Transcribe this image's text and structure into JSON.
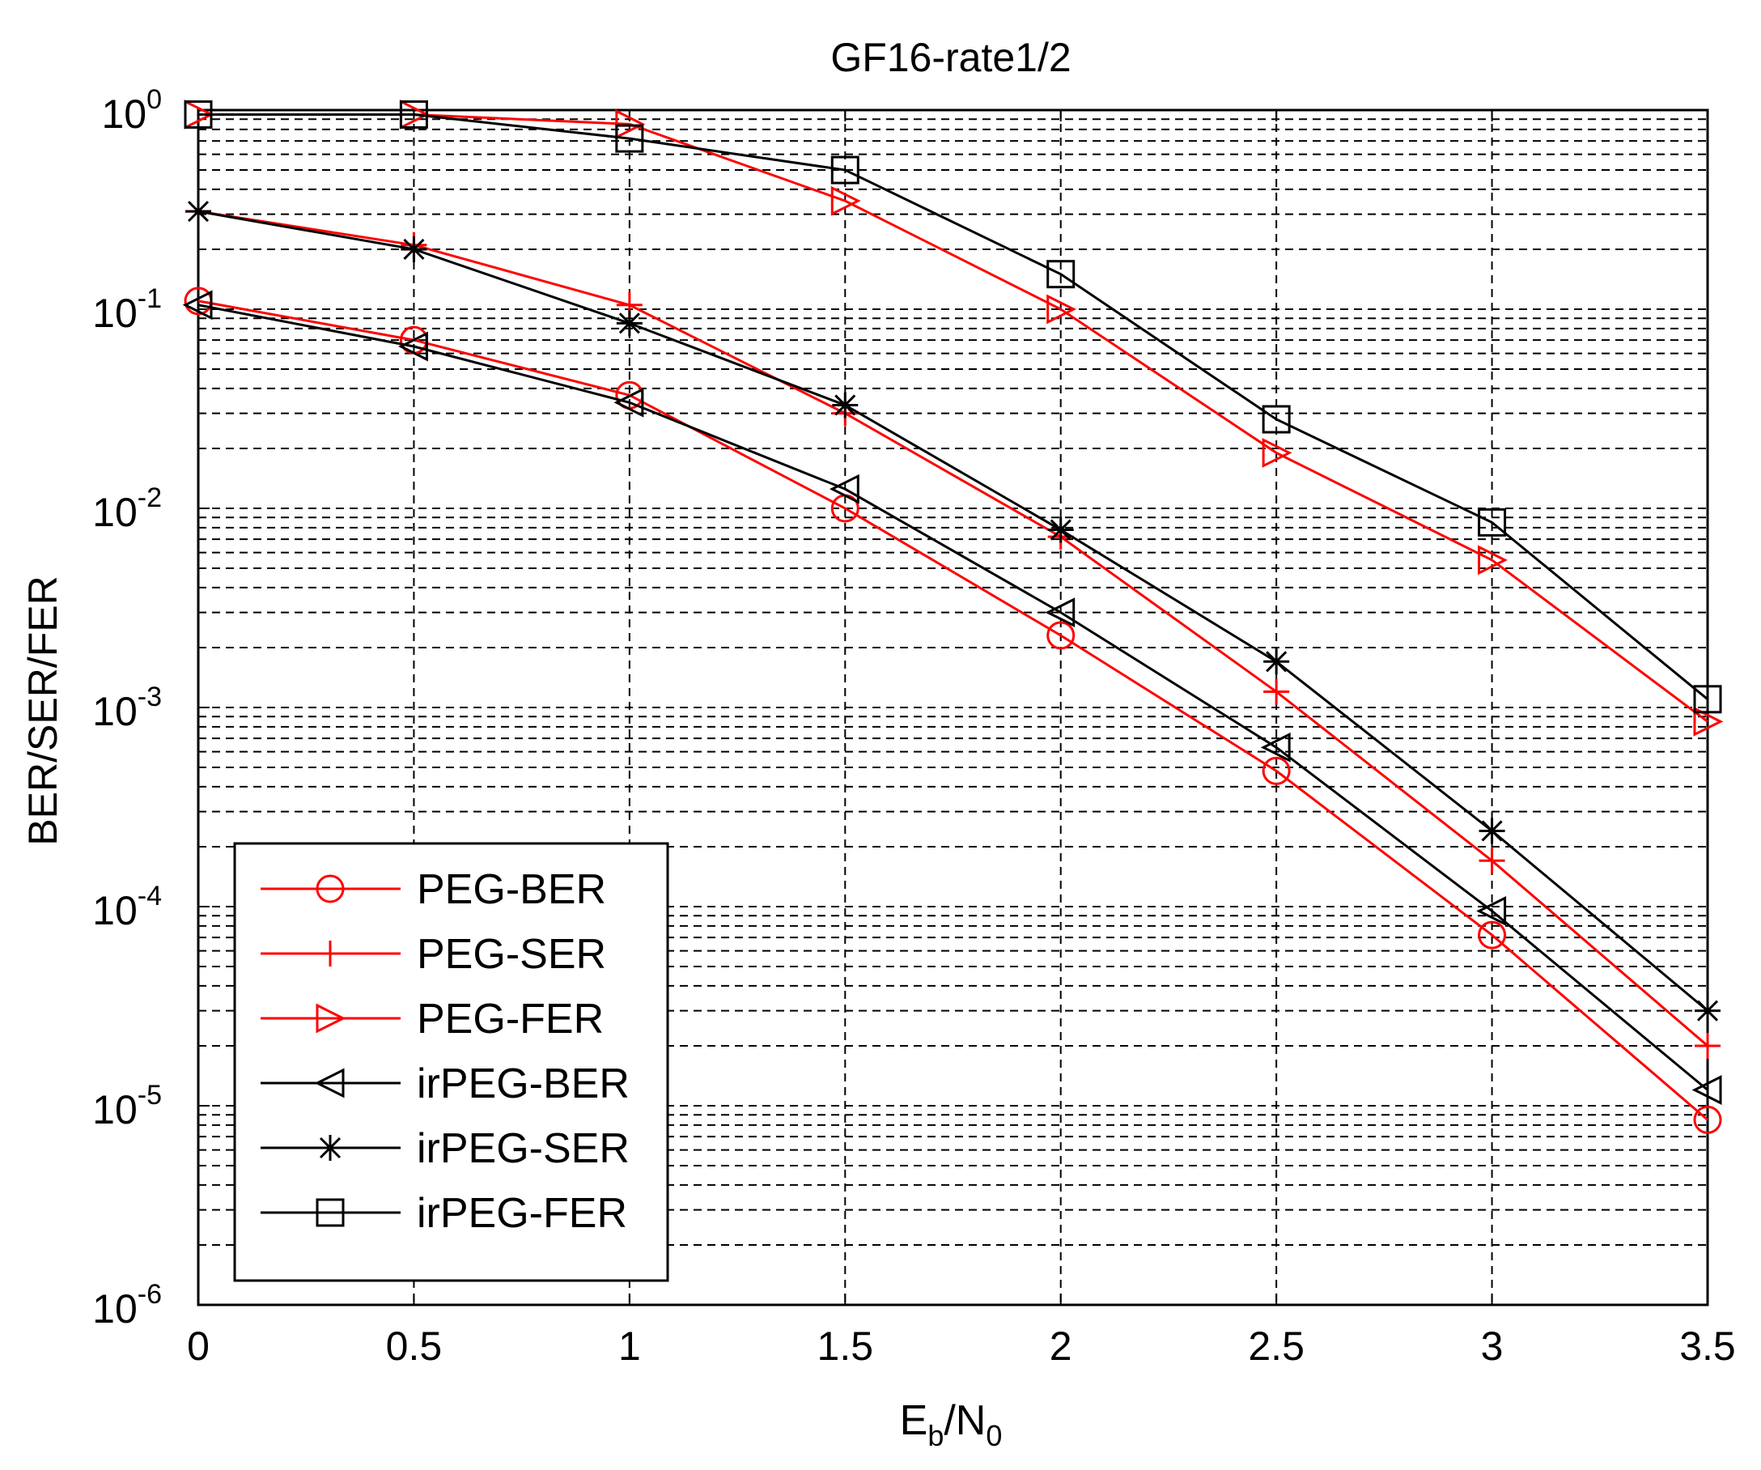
{
  "chart_data": {
    "type": "line",
    "title": "GF16-rate1/2",
    "xlabel_main": "E",
    "xlabel_sub1": "b",
    "xlabel_mid": "/N",
    "xlabel_sub2": "0",
    "ylabel": "BER/SER/FER",
    "yscale": "log",
    "xlim": [
      0,
      3.5
    ],
    "ylim": [
      1e-06,
      1
    ],
    "grid": true,
    "legend_position": "bottom-left",
    "x": [
      0,
      0.5,
      1,
      1.5,
      2,
      2.5,
      3,
      3.5
    ],
    "xticks": [
      0,
      0.5,
      1,
      1.5,
      2,
      2.5,
      3,
      3.5
    ],
    "xtick_labels": [
      "0",
      "0.5",
      "1",
      "1.5",
      "2",
      "2.5",
      "3",
      "3.5"
    ],
    "ytick_exponents": [
      0,
      -1,
      -2,
      -3,
      -4,
      -5,
      -6
    ],
    "ytick_base": "10",
    "series": [
      {
        "name": "PEG-BER",
        "color": "#ff0000",
        "marker": "circle",
        "values": [
          0.11,
          0.07,
          0.037,
          0.01,
          0.0023,
          0.00048,
          7.2e-05,
          8.5e-06
        ]
      },
      {
        "name": "PEG-SER",
        "color": "#ff0000",
        "marker": "plus",
        "values": [
          0.31,
          0.21,
          0.105,
          0.03,
          0.0072,
          0.0012,
          0.00017,
          2e-05
        ]
      },
      {
        "name": "PEG-FER",
        "color": "#ff0000",
        "marker": "triangle-right",
        "values": [
          0.95,
          0.95,
          0.85,
          0.35,
          0.1,
          0.019,
          0.0055,
          0.00085
        ]
      },
      {
        "name": "irPEG-BER",
        "color": "#000000",
        "marker": "triangle-left",
        "values": [
          0.105,
          0.065,
          0.034,
          0.0125,
          0.003,
          0.00063,
          9.5e-05,
          1.2e-05
        ]
      },
      {
        "name": "irPEG-SER",
        "color": "#000000",
        "marker": "asterisk",
        "values": [
          0.31,
          0.2,
          0.085,
          0.033,
          0.0078,
          0.0017,
          0.00024,
          3e-05
        ]
      },
      {
        "name": "irPEG-FER",
        "color": "#000000",
        "marker": "square",
        "values": [
          0.95,
          0.95,
          0.72,
          0.5,
          0.15,
          0.028,
          0.0085,
          0.0011
        ]
      }
    ]
  }
}
